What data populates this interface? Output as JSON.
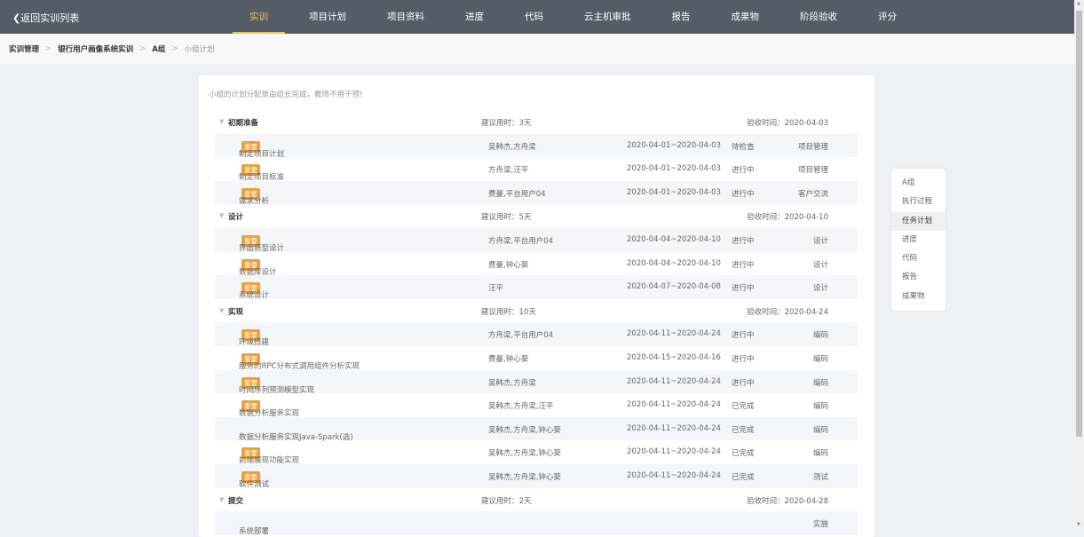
{
  "header": {
    "back": "❮返回实训列表",
    "nav": [
      "实训",
      "项目计划",
      "项目资料",
      "进度",
      "代码",
      "云主机审批",
      "报告",
      "成果物",
      "阶段验收",
      "评分"
    ],
    "active": 0
  },
  "breadcrumb": [
    "实训管理",
    "银行用户画像系统实训",
    "A组",
    "小组计划"
  ],
  "notice": "小组的计划分配是由组长完成，教师不用干预!",
  "tag_label": "重要",
  "groups": [
    {
      "name": "初期准备",
      "duration": "建议用时：3天",
      "accept": "验收时间：2020-04-03",
      "tasks": [
        {
          "name": "制定项目计划",
          "important": true,
          "members": "吴韩杰,方舟梁",
          "date": "2020-04-01~2020-04-03",
          "status": "待检查",
          "type": "项目管理"
        },
        {
          "name": "制定项目标准",
          "important": true,
          "members": "方舟梁,汪平",
          "date": "2020-04-01~2020-04-03",
          "status": "进行中",
          "type": "项目管理"
        },
        {
          "name": "需求分析",
          "important": true,
          "members": "费曼,平台用户04",
          "date": "2020-04-01~2020-04-03",
          "status": "进行中",
          "type": "客户交流"
        }
      ]
    },
    {
      "name": "设计",
      "duration": "建议用时：5天",
      "accept": "验收时间：2020-04-10",
      "tasks": [
        {
          "name": "界面原型设计",
          "important": true,
          "members": "方舟梁,平台用户04",
          "date": "2020-04-04~2020-04-10",
          "status": "进行中",
          "type": "设计"
        },
        {
          "name": "数据库设计",
          "important": true,
          "members": "费曼,钟心葵",
          "date": "2020-04-04~2020-04-10",
          "status": "进行中",
          "type": "设计"
        },
        {
          "name": "系统设计",
          "important": true,
          "members": "汪平",
          "date": "2020-04-07~2020-04-08",
          "status": "进行中",
          "type": "设计"
        }
      ]
    },
    {
      "name": "实现",
      "duration": "建议用时：10天",
      "accept": "验收时间：2020-04-24",
      "tasks": [
        {
          "name": "环境搭建",
          "important": true,
          "members": "方舟梁,平台用户04",
          "date": "2020-04-11~2020-04-24",
          "status": "进行中",
          "type": "编码"
        },
        {
          "name": "服务的RPC分布式调用组件分析实现",
          "important": true,
          "members": "费曼,钟心葵",
          "date": "2020-04-15~2020-04-16",
          "status": "进行中",
          "type": "编码"
        },
        {
          "name": "时间序列预测模型实现",
          "important": true,
          "members": "吴韩杰,方舟梁",
          "date": "2020-04-11~2020-04-24",
          "status": "进行中",
          "type": "编码"
        },
        {
          "name": "数据分析服务实现",
          "important": true,
          "members": "吴韩杰,方舟梁,汪平",
          "date": "2020-04-11~2020-04-24",
          "status": "已完成",
          "type": "编码"
        },
        {
          "name": "数据分析服务实现Java-Spark(选)",
          "important": false,
          "members": "吴韩杰,方舟梁,钟心葵",
          "date": "2020-04-11~2020-04-24",
          "status": "已完成",
          "type": "编码"
        },
        {
          "name": "前端展现功能实现",
          "important": true,
          "members": "吴韩杰,方舟梁,钟心葵",
          "date": "2020-04-11~2020-04-24",
          "status": "已完成",
          "type": "编码"
        },
        {
          "name": "软件测试",
          "important": true,
          "members": "吴韩杰,方舟梁,钟心葵",
          "date": "2020-04-11~2020-04-24",
          "status": "已完成",
          "type": "测试"
        }
      ]
    },
    {
      "name": "提交",
      "duration": "建议用时：2天",
      "accept": "验收时间：2020-04-28",
      "tasks": [
        {
          "name": "系统部署",
          "important": false,
          "members": "",
          "date": "",
          "status": "",
          "type": "实施"
        }
      ]
    }
  ],
  "side_menu": {
    "items": [
      "A组",
      "执行过程",
      "任务计划",
      "进度",
      "代码",
      "报告",
      "成果物"
    ],
    "active": 2
  }
}
